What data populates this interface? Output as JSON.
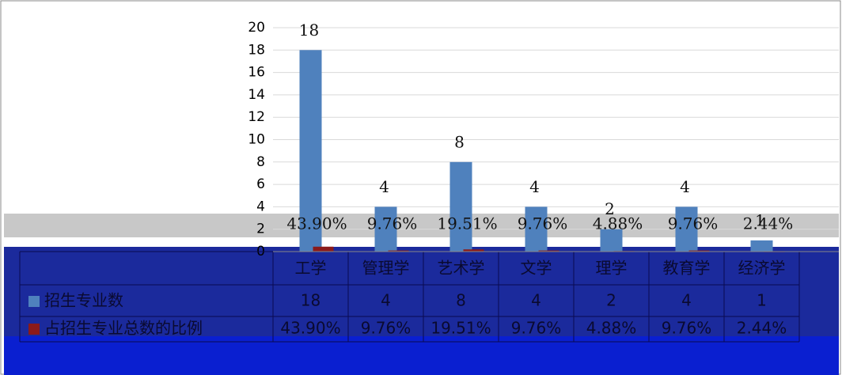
{
  "chart_data": {
    "type": "bar",
    "categories": [
      "工学",
      "管理学",
      "艺术学",
      "文学",
      "理学",
      "教育学",
      "经济学"
    ],
    "series": [
      {
        "name": "招生专业数",
        "color": "#4f81bd",
        "values": [
          18,
          4,
          8,
          4,
          2,
          4,
          1
        ]
      },
      {
        "name": "占招生专业总数的比例",
        "color": "#8b1a1a",
        "values": [
          0.439,
          0.0976,
          0.1951,
          0.0976,
          0.0488,
          0.0976,
          0.0244
        ],
        "value_labels": [
          "43.90%",
          "9.76%",
          "19.51%",
          "9.76%",
          "4.88%",
          "9.76%",
          "2.44%"
        ]
      }
    ],
    "ylim": [
      0,
      20
    ],
    "yticks": [
      0,
      2,
      4,
      6,
      8,
      10,
      12,
      14,
      16,
      18,
      20
    ],
    "grid": true
  }
}
